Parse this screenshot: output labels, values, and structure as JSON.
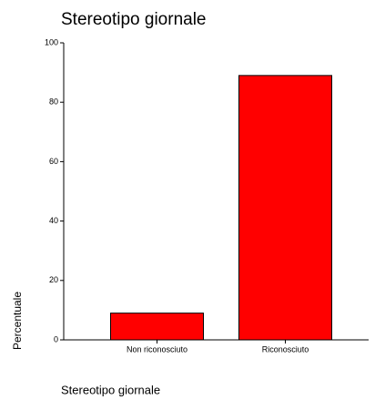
{
  "chart_data": {
    "type": "bar",
    "title": "Stereotipo giornale",
    "categories": [
      "Non riconosciuto",
      "Riconosciuto"
    ],
    "values": [
      9,
      89
    ],
    "color": "#ff0000",
    "ylim": [
      0,
      100
    ],
    "yticks": [
      0,
      20,
      40,
      60,
      80,
      100
    ],
    "y_label": "Percentuale",
    "x_label": "Stereotipo giornale"
  }
}
